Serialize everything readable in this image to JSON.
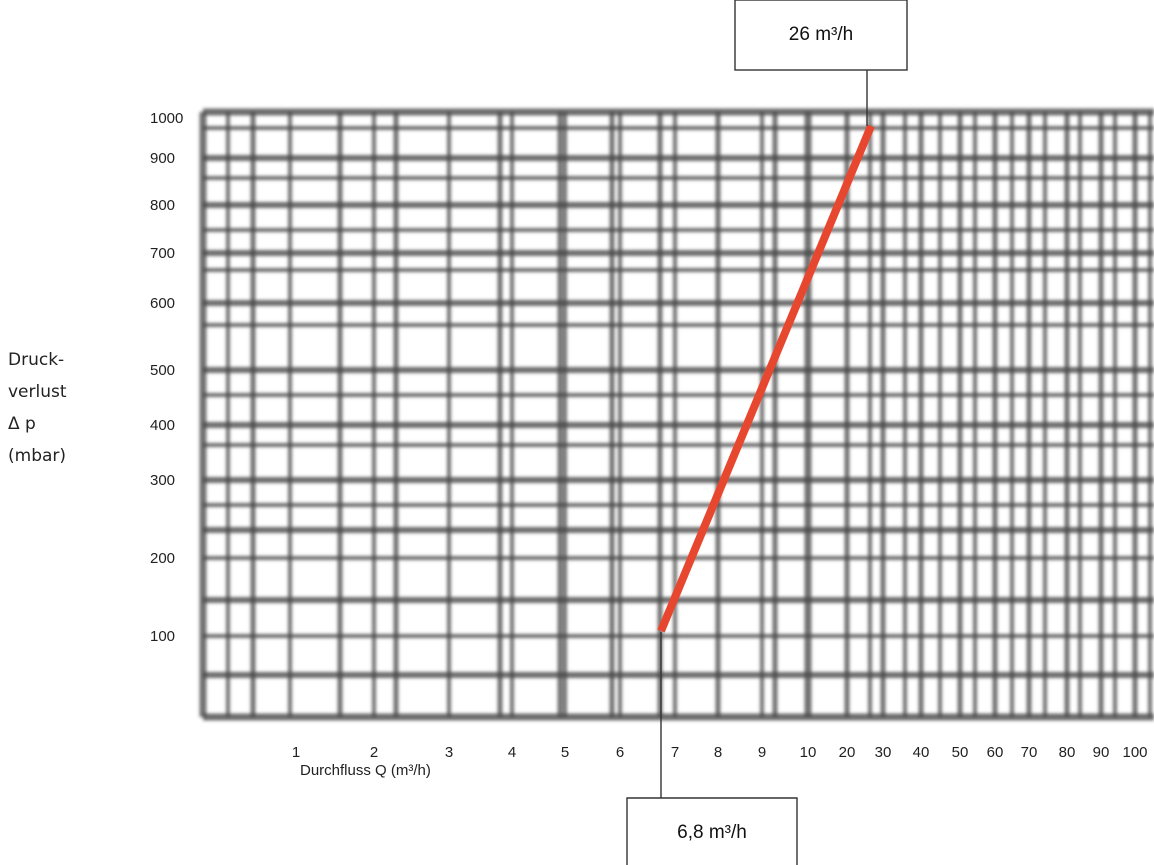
{
  "chart_data": {
    "type": "line",
    "title": "",
    "xlabel": "Durchfluss Q (m³/h)",
    "ylabel_lines": [
      "Druck-",
      "verlust",
      "Δ p",
      "(mbar)"
    ],
    "x_ticks": [
      "1",
      "2",
      "3",
      "4",
      "5",
      "6",
      "7",
      "8",
      "9",
      "10",
      "20",
      "30",
      "40",
      "50",
      "60",
      "70",
      "80",
      "90",
      "100"
    ],
    "y_ticks": [
      "1000",
      "900",
      "800",
      "700",
      "600",
      "500",
      "400",
      "300",
      "200",
      "100"
    ],
    "xlim": [
      0.75,
      100
    ],
    "ylim": [
      50,
      1000
    ],
    "x_scale": "log",
    "y_scale": "log",
    "grid": true,
    "series": [
      {
        "color": "#e8472f",
        "points": [
          {
            "x": 6.8,
            "y": 100
          },
          {
            "x": 26,
            "y": 950
          }
        ]
      }
    ],
    "annotations": [
      {
        "label": "26 m³/h",
        "x": 26,
        "y": 950
      },
      {
        "label": "6,8 m³/h",
        "x": 6.8,
        "y": 100
      }
    ]
  }
}
